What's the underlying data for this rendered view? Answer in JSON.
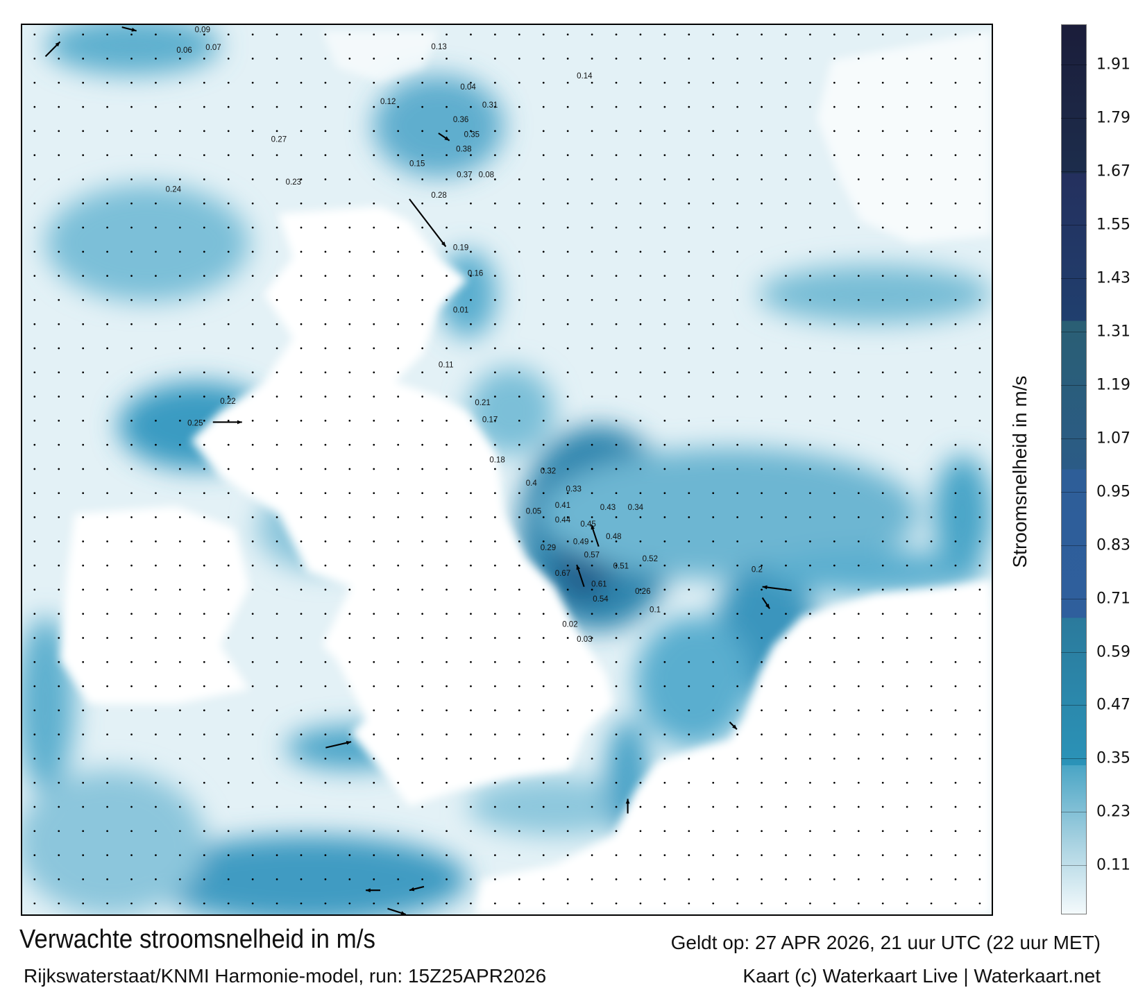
{
  "title": "Verwachte stroomsnelheid in m/s",
  "valid_time": "Geldt op: 27 APR 2026, 21 uur UTC (22 uur MET)",
  "model_run": "Rijkswaterstaat/KNMI Harmonie-model, run: 15Z25APR2026",
  "credit": "Kaart (c) Waterkaart Live | Waterkaart.net",
  "colorbar": {
    "label": "Stroomsnelheid in m/s",
    "ticks": [
      "1.91",
      "1.79",
      "1.67",
      "1.55",
      "1.43",
      "1.31",
      "1.19",
      "1.07",
      "0.95",
      "0.83",
      "0.71",
      "0.59",
      "0.47",
      "0.35",
      "0.23",
      "0.11"
    ],
    "range": [
      0,
      2.0
    ]
  },
  "speed_labels": [
    "0.09",
    "0.07",
    "0.06",
    "0.14",
    "0.13",
    "0.08",
    "0.04",
    "0.12",
    "0.31",
    "0.36",
    "0.35",
    "0.38",
    "0.37",
    "0.28",
    "0.19",
    "0.16",
    "0.01",
    "0.11",
    "0.15",
    "0.21",
    "0.27",
    "0.23",
    "0.22",
    "0.24",
    "0.25",
    "0.18",
    "0.17",
    "0.32",
    "0.33",
    "0.4",
    "0.41",
    "0.43",
    "0.44",
    "0.45",
    "0.48",
    "0.49",
    "0.57",
    "0.51",
    "0.52",
    "0.67",
    "0.61",
    "0.54",
    "0.34",
    "0.26",
    "0.29",
    "0.05",
    "0.02",
    "0.03",
    "0.1",
    "0.2"
  ],
  "colors": {
    "water_light": "#d4eaf2",
    "water_mid": "#5fb0cf",
    "water_deep": "#2a7fa8",
    "land": "#ffffff",
    "arrow": "#000000"
  }
}
